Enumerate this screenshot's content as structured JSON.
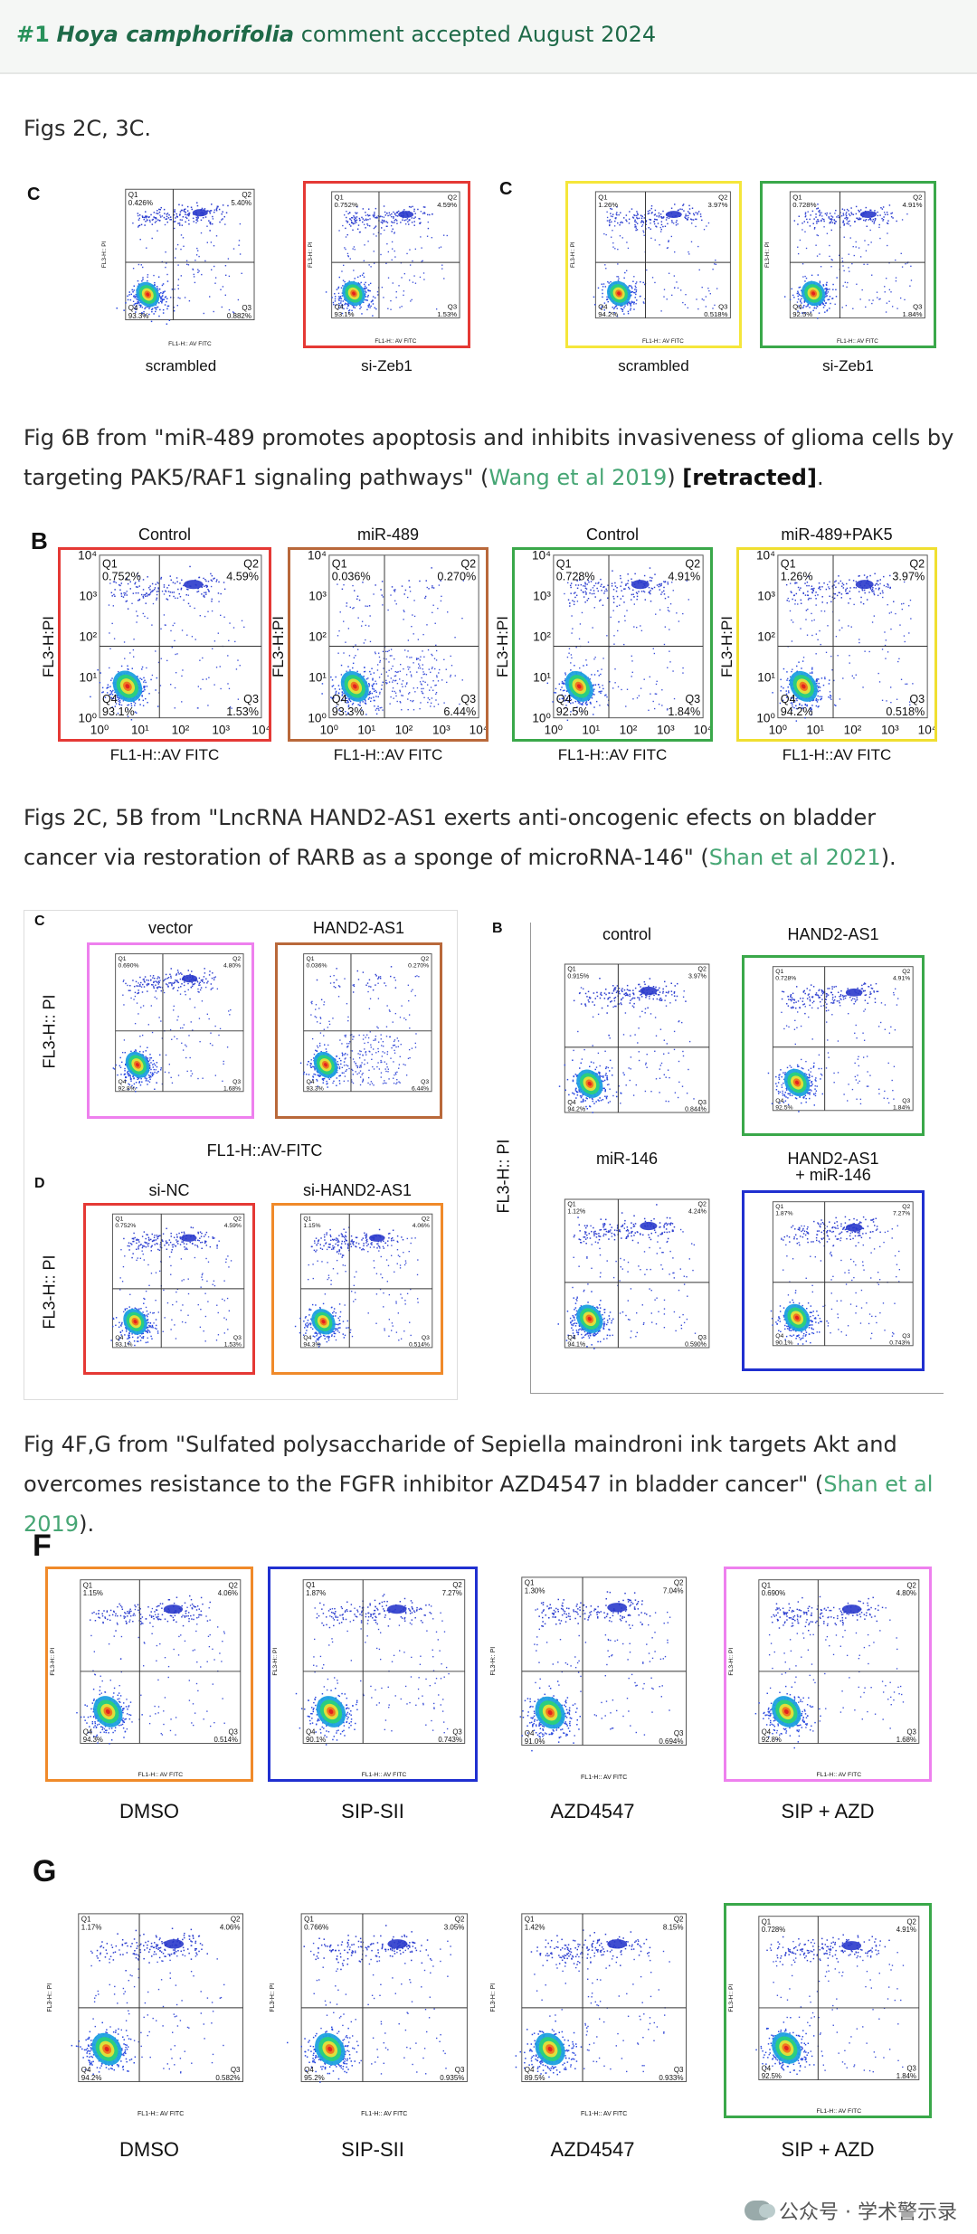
{
  "header": {
    "number": "#1",
    "species": "Hoya camphorifolia",
    "status": "comment accepted August 2024"
  },
  "para1": "Figs 2C, 3C.",
  "para2": {
    "before": "Fig 6B from \"miR-489 promotes apoptosis and inhibits invasiveness of glioma cells by targeting PAK5/RAF1 signaling pathways\" (",
    "link": "Wang et al 2019",
    "middle": ") ",
    "bold": "[retracted]",
    "after": "."
  },
  "para3": {
    "before": "Figs 2C, 5B from \"LncRNA HAND2-AS1 exerts anti-oncogenic efects on bladder cancer via restoration of RARB as a sponge of microRNA-146\" (",
    "link": "Shan et al 2021",
    "after": ")."
  },
  "para4": {
    "before": "Fig 4F,G from \"Sulfated polysaccharide of Sepiella maindroni ink targets Akt and overcomes resistance to the FGFR inhibitor AZD4547 in bladder cancer\" (",
    "link": "Shan et al 2019",
    "after": ")."
  },
  "fig1": {
    "letter_left": "C",
    "letter_right": "C",
    "captions": [
      "scrambled",
      "si-Zeb1",
      "scrambled",
      "si-Zeb1"
    ],
    "quads": [
      {
        "q1": "0.426%",
        "q2": "5.40%",
        "q3": "0.882%",
        "q4": "93.3%"
      },
      {
        "q1": "0.752%",
        "q2": "4.59%",
        "q3": "1.53%",
        "q4": "93.1%"
      },
      {
        "q1": "1.26%",
        "q2": "3.97%",
        "q3": "0.518%",
        "q4": "94.2%"
      },
      {
        "q1": "0.728%",
        "q2": "4.91%",
        "q3": "1.84%",
        "q4": "92.5%"
      }
    ],
    "ylabel": "FL3-H:: PI",
    "xlabel": "FL1-H:: AV FITC",
    "colors": [
      "#ffffff",
      "#e53935",
      "#f5e63a",
      "#3aa84a"
    ]
  },
  "fig2": {
    "letter": "B",
    "titles": [
      "Control",
      "miR-489",
      "Control",
      "miR-489+PAK5"
    ],
    "quads": [
      {
        "q1": "0.752%",
        "q2": "4.59%",
        "q3": "1.53%",
        "q4": "93.1%"
      },
      {
        "q1": "0.036%",
        "q2": "0.270%",
        "q3": "6.44%",
        "q4": "93.3%"
      },
      {
        "q1": "0.728%",
        "q2": "4.91%",
        "q3": "1.84%",
        "q4": "92.5%"
      },
      {
        "q1": "1.26%",
        "q2": "3.97%",
        "q3": "0.518%",
        "q4": "94.2%"
      }
    ],
    "ylabel": "FL3-H:PI",
    "xlabel": "FL1-H::AV FITC",
    "ticks_x": [
      "10⁰",
      "10¹",
      "10²",
      "10³",
      "10⁴"
    ],
    "ticks_y": [
      "10⁴",
      "10³",
      "10²",
      "10¹",
      "10⁰"
    ],
    "colors": [
      "#e53935",
      "#b9683a",
      "#3aa84a",
      "#f0df30"
    ]
  },
  "fig3": {
    "letter_c": "C",
    "letter_d": "D",
    "letter_b": "B",
    "c_titles": [
      "vector",
      "HAND2-AS1"
    ],
    "d_titles": [
      "si-NC",
      "si-HAND2-AS1"
    ],
    "b_titles": [
      "control",
      "HAND2-AS1",
      "miR-146",
      "HAND2-AS1\n+ miR-146"
    ],
    "ylabel": "FL3-H:: PI",
    "xlabel": "FL1-H::AV-FITC",
    "c_quads": [
      {
        "q1": "0.690%",
        "q2": "4.80%",
        "q3": "1.68%",
        "q4": "92.8%"
      },
      {
        "q1": "0.036%",
        "q2": "0.270%",
        "q3": "6.44%",
        "q4": "93.3%"
      }
    ],
    "d_quads": [
      {
        "q1": "0.752%",
        "q2": "4.59%",
        "q3": "1.53%",
        "q4": "93.1%"
      },
      {
        "q1": "1.15%",
        "q2": "4.06%",
        "q3": "0.514%",
        "q4": "94.3%"
      }
    ],
    "b_quads": [
      {
        "q1": "0.915%",
        "q2": "3.97%",
        "q3": "0.844%",
        "q4": "94.2%"
      },
      {
        "q1": "0.728%",
        "q2": "4.91%",
        "q3": "1.84%",
        "q4": "92.5%"
      },
      {
        "q1": "1.12%",
        "q2": "4.24%",
        "q3": "0.590%",
        "q4": "94.1%"
      },
      {
        "q1": "1.87%",
        "q2": "7.27%",
        "q3": "0.743%",
        "q4": "90.1%"
      }
    ],
    "c_colors": [
      "#ee80ee",
      "#b9683a"
    ],
    "d_colors": [
      "#e53935",
      "#f08a2a"
    ],
    "b_colors": [
      "#ffffff",
      "#3aa84a",
      "#ffffff",
      "#2030d0"
    ]
  },
  "fig4": {
    "letter_f": "F",
    "letter_g": "G",
    "labels": [
      "DMSO",
      "SIP-SII",
      "AZD4547",
      "SIP + AZD"
    ],
    "ylabel": "FL3-H:: PI",
    "xlabel": "FL1-H:: AV FITC",
    "f_quads": [
      {
        "q1": "1.15%",
        "q2": "4.06%",
        "q3": "0.514%",
        "q4": "94.3%"
      },
      {
        "q1": "1.87%",
        "q2": "7.27%",
        "q3": "0.743%",
        "q4": "90.1%"
      },
      {
        "q1": "1.30%",
        "q2": "7.04%",
        "q3": "0.694%",
        "q4": "91.0%"
      },
      {
        "q1": "0.690%",
        "q2": "4.80%",
        "q3": "1.68%",
        "q4": "92.8%"
      }
    ],
    "g_quads": [
      {
        "q1": "1.17%",
        "q2": "4.06%",
        "q3": "0.582%",
        "q4": "94.2%"
      },
      {
        "q1": "0.766%",
        "q2": "3.05%",
        "q3": "0.935%",
        "q4": "95.2%"
      },
      {
        "q1": "1.42%",
        "q2": "8.15%",
        "q3": "0.933%",
        "q4": "89.5%"
      },
      {
        "q1": "0.728%",
        "q2": "4.91%",
        "q3": "1.84%",
        "q4": "92.5%"
      }
    ],
    "f_colors": [
      "#f08a2a",
      "#2030d0",
      "#ffffff",
      "#ee80ee"
    ],
    "g_colors": [
      "#ffffff",
      "#ffffff",
      "#ffffff",
      "#3aa84a"
    ]
  },
  "watermark": "公众号 · 学术警示录"
}
